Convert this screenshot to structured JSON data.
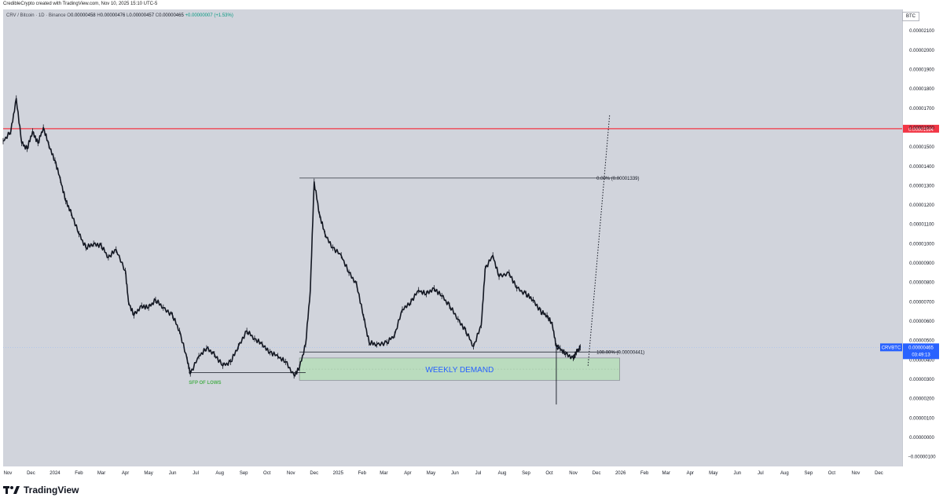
{
  "header": {
    "credit": "CredibleCrypto created with TradingView.com, Nov 10, 2025 15:10 UTC-5"
  },
  "legend": {
    "symbol": "CRV / Bitcoin · 1D · Binance",
    "open_label": "O",
    "open": "0.00000458",
    "high_label": "H",
    "high": "0.00000476",
    "low_label": "L",
    "low": "0.00000457",
    "close_label": "C",
    "close": "0.00000465",
    "change": "+0.00000007 (+1.53%)"
  },
  "currency_badge": "BTC",
  "brand": {
    "logo_text": "TradingView"
  },
  "colors": {
    "plot_bg": "#d1d4dc",
    "candles": "#131722",
    "resistance": "#f23645",
    "demand_zone": "rgba(178,223,180,0.75)",
    "demand_text": "#2962ff",
    "sfp_text": "#4caf50",
    "price_tag": "#2962ff"
  },
  "chart_data": {
    "type": "line",
    "title": "CRV / Bitcoin · 1D · Binance",
    "xlabel": "",
    "ylabel": "",
    "ylim": [
      -1.5e-06,
      2.21e-05
    ],
    "y_ticks": [
      "0.00002100",
      "0.00002000",
      "0.00001900",
      "0.00001800",
      "0.00001700",
      "0.00001600",
      "0.00001500",
      "0.00001400",
      "0.00001300",
      "0.00001200",
      "0.00001100",
      "0.00001000",
      "0.00000900",
      "0.00000800",
      "0.00000700",
      "0.00000600",
      "0.00000500",
      "0.00000400",
      "0.00000300",
      "0.00000200",
      "0.00000100",
      "0.00000000",
      "−0.00000100"
    ],
    "y_tick_values": [
      2.1e-05,
      2e-05,
      1.9e-05,
      1.8e-05,
      1.7e-05,
      1.6e-05,
      1.5e-05,
      1.4e-05,
      1.3e-05,
      1.2e-05,
      1.1e-05,
      1e-05,
      9e-06,
      8e-06,
      7e-06,
      6e-06,
      5e-06,
      4e-06,
      3e-06,
      2e-06,
      1e-06,
      0,
      -1e-06
    ],
    "x_ticks": [
      "Nov",
      "Dec",
      "2024",
      "Feb",
      "Mar",
      "Apr",
      "May",
      "Jun",
      "Jul",
      "Aug",
      "Sep",
      "Oct",
      "Nov",
      "Dec",
      "2025",
      "Feb",
      "Mar",
      "Apr",
      "May",
      "Jun",
      "Jul",
      "Aug",
      "Sep",
      "Oct",
      "Nov",
      "Dec",
      "2026",
      "Feb",
      "Mar",
      "Apr",
      "May",
      "Jun",
      "Jul",
      "Aug",
      "Sep",
      "Oct",
      "Nov",
      "Dec"
    ],
    "x_tick_dates": [
      "2023-11-01",
      "2023-12-01",
      "2024-01-01",
      "2024-02-01",
      "2024-03-01",
      "2024-04-01",
      "2024-05-01",
      "2024-06-01",
      "2024-07-01",
      "2024-08-01",
      "2024-09-01",
      "2024-10-01",
      "2024-11-01",
      "2024-12-01",
      "2025-01-01",
      "2025-02-01",
      "2025-03-01",
      "2025-04-01",
      "2025-05-01",
      "2025-06-01",
      "2025-07-01",
      "2025-08-01",
      "2025-09-01",
      "2025-10-01",
      "2025-11-01",
      "2025-12-01",
      "2026-01-01",
      "2026-02-01",
      "2026-03-01",
      "2026-04-01",
      "2026-05-01",
      "2026-06-01",
      "2026-07-01",
      "2026-08-01",
      "2026-09-01",
      "2026-10-01",
      "2026-11-01",
      "2026-12-01"
    ],
    "x_range": [
      "2023-10-26",
      "2026-12-31"
    ],
    "series": [
      {
        "type": "candlestick-close",
        "points": [
          [
            "2023-10-26",
            1.53e-05
          ],
          [
            "2023-11-05",
            1.58e-05
          ],
          [
            "2023-11-12",
            1.75e-05
          ],
          [
            "2023-11-19",
            1.52e-05
          ],
          [
            "2023-11-26",
            1.49e-05
          ],
          [
            "2023-12-03",
            1.58e-05
          ],
          [
            "2023-12-10",
            1.52e-05
          ],
          [
            "2023-12-17",
            1.6e-05
          ],
          [
            "2023-12-24",
            1.51e-05
          ],
          [
            "2024-01-01",
            1.43e-05
          ],
          [
            "2024-01-08",
            1.33e-05
          ],
          [
            "2024-01-15",
            1.22e-05
          ],
          [
            "2024-01-22",
            1.16e-05
          ],
          [
            "2024-02-01",
            1.05e-05
          ],
          [
            "2024-02-10",
            9.8e-06
          ],
          [
            "2024-02-20",
            1e-05
          ],
          [
            "2024-03-01",
            9.9e-06
          ],
          [
            "2024-03-10",
            9.3e-06
          ],
          [
            "2024-03-20",
            9.7e-06
          ],
          [
            "2024-04-01",
            8.6e-06
          ],
          [
            "2024-04-05",
            7e-06
          ],
          [
            "2024-04-12",
            6.3e-06
          ],
          [
            "2024-04-22",
            6.8e-06
          ],
          [
            "2024-05-01",
            6.7e-06
          ],
          [
            "2024-05-10",
            7.1e-06
          ],
          [
            "2024-05-20",
            6.7e-06
          ],
          [
            "2024-06-01",
            6.3e-06
          ],
          [
            "2024-06-10",
            5.5e-06
          ],
          [
            "2024-06-20",
            4e-06
          ],
          [
            "2024-06-24",
            3.3e-06
          ],
          [
            "2024-07-05",
            4.2e-06
          ],
          [
            "2024-07-15",
            4.6e-06
          ],
          [
            "2024-07-25",
            4.3e-06
          ],
          [
            "2024-08-05",
            3.7e-06
          ],
          [
            "2024-08-15",
            3.9e-06
          ],
          [
            "2024-08-25",
            4.7e-06
          ],
          [
            "2024-09-05",
            5.5e-06
          ],
          [
            "2024-09-15",
            5.1e-06
          ],
          [
            "2024-09-25",
            4.8e-06
          ],
          [
            "2024-10-05",
            4.4e-06
          ],
          [
            "2024-10-15",
            4.2e-06
          ],
          [
            "2024-10-25",
            3.9e-06
          ],
          [
            "2024-11-05",
            3.2e-06
          ],
          [
            "2024-11-12",
            3.6e-06
          ],
          [
            "2024-11-20",
            4.8e-06
          ],
          [
            "2024-11-26",
            7.6e-06
          ],
          [
            "2024-12-01",
            1.32e-05
          ],
          [
            "2024-12-08",
            1.15e-05
          ],
          [
            "2024-12-15",
            1.05e-05
          ],
          [
            "2024-12-25",
            9.8e-06
          ],
          [
            "2025-01-05",
            9.4e-06
          ],
          [
            "2025-01-15",
            8.5e-06
          ],
          [
            "2025-01-25",
            7.9e-06
          ],
          [
            "2025-02-03",
            6.2e-06
          ],
          [
            "2025-02-10",
            4.9e-06
          ],
          [
            "2025-02-20",
            4.8e-06
          ],
          [
            "2025-03-05",
            4.9e-06
          ],
          [
            "2025-03-15",
            5.3e-06
          ],
          [
            "2025-03-25",
            6.6e-06
          ],
          [
            "2025-04-05",
            7e-06
          ],
          [
            "2025-04-15",
            7.6e-06
          ],
          [
            "2025-04-25",
            7.4e-06
          ],
          [
            "2025-05-05",
            7.7e-06
          ],
          [
            "2025-05-15",
            7.3e-06
          ],
          [
            "2025-05-25",
            6.8e-06
          ],
          [
            "2025-06-05",
            6.1e-06
          ],
          [
            "2025-06-15",
            5.5e-06
          ],
          [
            "2025-06-25",
            4.7e-06
          ],
          [
            "2025-07-05",
            5.8e-06
          ],
          [
            "2025-07-10",
            8.7e-06
          ],
          [
            "2025-07-20",
            9.4e-06
          ],
          [
            "2025-07-28",
            8.3e-06
          ],
          [
            "2025-08-10",
            8.5e-06
          ],
          [
            "2025-08-20",
            7.7e-06
          ],
          [
            "2025-09-01",
            7.4e-06
          ],
          [
            "2025-09-10",
            7.1e-06
          ],
          [
            "2025-09-20",
            6.5e-06
          ],
          [
            "2025-09-28",
            6.3e-06
          ],
          [
            "2025-10-05",
            5.8e-06
          ],
          [
            "2025-10-10",
            4.7e-06
          ],
          [
            "2025-10-15",
            4.6e-06
          ],
          [
            "2025-10-22",
            4.3e-06
          ],
          [
            "2025-11-01",
            4.1e-06
          ],
          [
            "2025-11-05",
            4.4e-06
          ],
          [
            "2025-11-10",
            4.65e-06
          ]
        ]
      }
    ],
    "horizontal_lines": [
      {
        "label": "0.00001594",
        "value": 1.594e-05
      },
      {
        "label": "100.00% (0.00000441)",
        "value": 4.41e-06,
        "from": "2024-11-12",
        "to": "2025-12-31"
      },
      {
        "label": "0.00% (0.00001339)",
        "value": 1.339e-05,
        "from": "2024-11-12",
        "to": "2025-12-31"
      },
      {
        "label": "",
        "value": 3.34e-06,
        "from": "2024-06-22",
        "to": "2024-11-20"
      }
    ],
    "zones": [
      {
        "label": "WEEKLY DEMAND",
        "from": "2024-11-12",
        "to": "2025-12-31",
        "ymin": 2.95e-06,
        "ymax": 4.1e-06
      }
    ],
    "annotations": [
      {
        "text": "SFP OF LOWS",
        "x": "2024-06-22",
        "y": 3e-06
      },
      {
        "text": "0.00% (0.00001339)",
        "x": "2025-12-01",
        "y": 1.339e-05
      },
      {
        "text": "100.00% (0.00000441)",
        "x": "2025-12-01",
        "y": 4.41e-06
      }
    ],
    "projection": {
      "style": "dotted",
      "from": [
        "2025-11-20",
        3.7e-06
      ],
      "to": [
        "2025-12-18",
        1.67e-05
      ]
    },
    "wick_low": {
      "date": "2025-10-10",
      "value": 1.7e-06
    },
    "price_tag": {
      "symbol": "CRVBTC",
      "price": "0.00000465",
      "countdown": "03:49:13",
      "value": 4.65e-06
    },
    "grid": false,
    "legend_position": "top-left"
  }
}
